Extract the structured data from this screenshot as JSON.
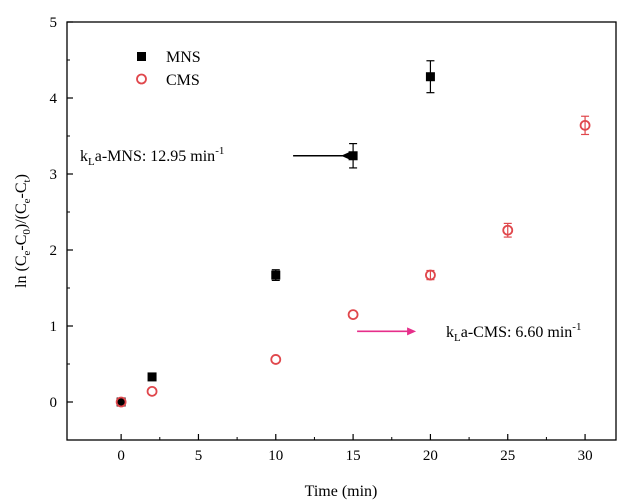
{
  "chart_data": {
    "type": "scatter",
    "title": "",
    "xlabel": "Time (min)",
    "ylabel_parts": [
      "ln (C",
      "e",
      "-C",
      "0",
      ")/(C",
      "e",
      "-C",
      "t",
      ")"
    ],
    "xlim": [
      -3.5,
      32
    ],
    "ylim": [
      -0.5,
      5
    ],
    "xticks": [
      0,
      5,
      10,
      15,
      20,
      25,
      30
    ],
    "yticks": [
      0,
      1,
      2,
      3,
      4,
      5
    ],
    "legend_position": "top-left",
    "series": [
      {
        "name": "MNS",
        "marker": "filled-square",
        "color": "#000000",
        "x": [
          0,
          2,
          10,
          15,
          20
        ],
        "y": [
          0.0,
          0.33,
          1.67,
          3.24,
          4.28
        ],
        "yerr": [
          0.0,
          0.0,
          0.07,
          0.16,
          0.21
        ]
      },
      {
        "name": "CMS",
        "marker": "open-circle",
        "color": "#e0474c",
        "x": [
          0,
          2,
          10,
          15,
          20,
          25,
          30
        ],
        "y": [
          0.0,
          0.14,
          0.56,
          1.15,
          1.67,
          2.26,
          3.64
        ],
        "yerr": [
          0.0,
          0.0,
          0.0,
          0.0,
          0.06,
          0.09,
          0.12
        ]
      }
    ],
    "annotations": [
      {
        "parts": [
          "k",
          "L",
          "a-MNS: 12.95 min",
          "-1"
        ],
        "arrow_direction": "left",
        "arrow_color": "#000000",
        "target_x": 15,
        "target_y": 3.24
      },
      {
        "parts": [
          "k",
          "L",
          "a-CMS: 6.60 min",
          "-1"
        ],
        "arrow_direction": "right",
        "arrow_color": "#e62e8a",
        "target_x": 15,
        "target_y": 0.93
      }
    ]
  }
}
